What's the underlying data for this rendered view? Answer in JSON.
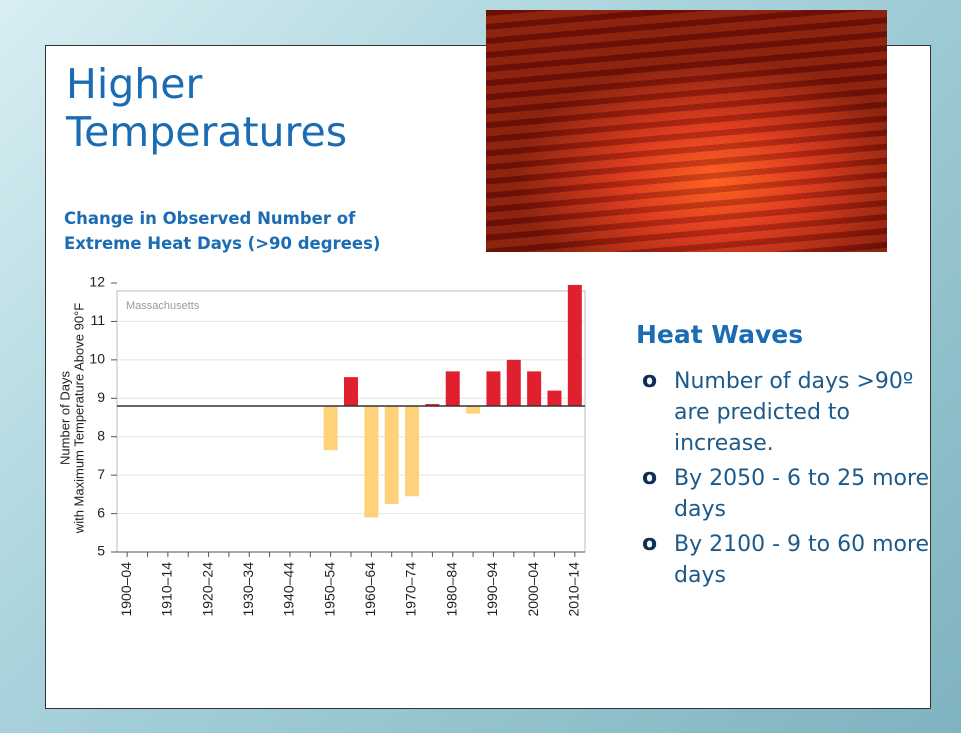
{
  "title": "Higher Temperatures",
  "subtitle": "Change in Observed Number of Extreme Heat Days (>90 degrees)",
  "chart_data": {
    "type": "bar",
    "annotation": "Massachusetts",
    "y_label": [
      "Number of Days",
      "with Maximum Temperature Above 90°F"
    ],
    "categories": [
      "1900–04",
      null,
      "1910–14",
      null,
      "1920–24",
      null,
      "1930–34",
      null,
      "1940–44",
      null,
      "1950–54",
      null,
      "1960–64",
      null,
      "1970–74",
      null,
      "1980–84",
      null,
      "1990–94",
      null,
      "2000–04",
      null,
      "2010–14"
    ],
    "values": [
      null,
      null,
      null,
      null,
      null,
      null,
      null,
      null,
      null,
      null,
      7.65,
      9.55,
      5.9,
      6.25,
      6.45,
      8.85,
      9.7,
      8.6,
      9.7,
      10.0,
      9.7,
      9.2,
      11.95
    ],
    "baseline": 8.8,
    "color_above": "#e0202e",
    "color_below": "#fdd27a",
    "ylim": [
      5,
      12
    ],
    "yticks": [
      5,
      6,
      7,
      8,
      9,
      10,
      11,
      12
    ],
    "grid": true
  },
  "section": {
    "heading": "Heat Waves",
    "bullets": [
      "Number of days >90º are predicted to increase.",
      "By 2050 - 6 to 25 more days",
      "By 2100 - 9 to 60 more days"
    ]
  }
}
